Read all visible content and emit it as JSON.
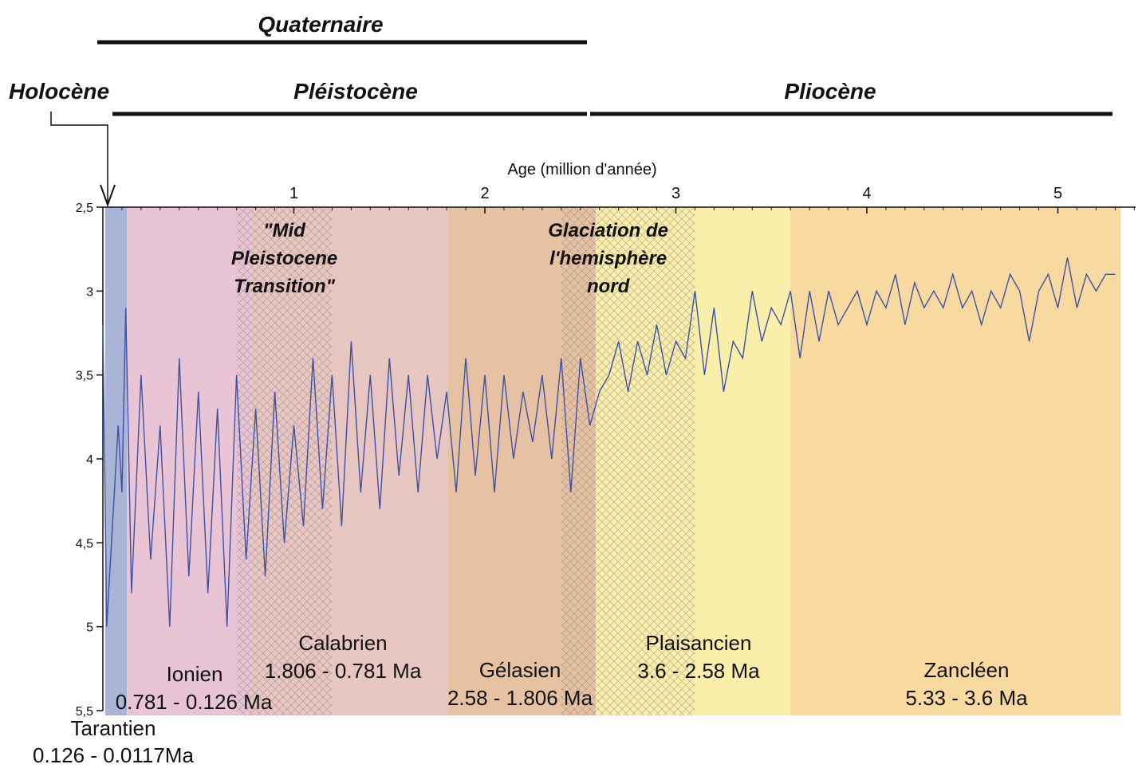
{
  "chart_data": {
    "type": "line",
    "title": "",
    "xlabel": "Age (million d'année)",
    "ylabel": "",
    "xlim": [
      0,
      5.33
    ],
    "ylim": [
      2.5,
      5.5
    ],
    "y_inverted": true,
    "x_ticks": [
      1,
      2,
      3,
      4,
      5
    ],
    "x_tick_labels": [
      "1",
      "2",
      "3",
      "4",
      "5"
    ],
    "y_ticks": [
      2.5,
      3,
      3.5,
      4,
      4.5,
      5,
      5.5
    ],
    "y_tick_labels": [
      "2,5",
      "3",
      "3,5",
      "4",
      "4,5",
      "5",
      "5,5"
    ],
    "grid": false,
    "series": [
      {
        "color": "#3f51a5",
        "x": [
          0,
          0.02,
          0.05,
          0.08,
          0.1,
          0.12,
          0.15,
          0.2,
          0.25,
          0.3,
          0.35,
          0.4,
          0.45,
          0.5,
          0.55,
          0.6,
          0.65,
          0.7,
          0.75,
          0.8,
          0.85,
          0.9,
          0.95,
          1.0,
          1.05,
          1.1,
          1.15,
          1.2,
          1.25,
          1.3,
          1.35,
          1.4,
          1.45,
          1.5,
          1.55,
          1.6,
          1.65,
          1.7,
          1.75,
          1.8,
          1.85,
          1.9,
          1.95,
          2.0,
          2.05,
          2.1,
          2.15,
          2.2,
          2.25,
          2.3,
          2.35,
          2.4,
          2.45,
          2.5,
          2.55,
          2.6,
          2.65,
          2.7,
          2.75,
          2.8,
          2.85,
          2.9,
          2.95,
          3.0,
          3.05,
          3.1,
          3.15,
          3.2,
          3.25,
          3.3,
          3.35,
          3.4,
          3.45,
          3.5,
          3.55,
          3.6,
          3.65,
          3.7,
          3.75,
          3.8,
          3.85,
          3.9,
          3.95,
          4.0,
          4.05,
          4.1,
          4.15,
          4.2,
          4.25,
          4.3,
          4.35,
          4.4,
          4.45,
          4.5,
          4.55,
          4.6,
          4.65,
          4.7,
          4.75,
          4.8,
          4.85,
          4.9,
          4.95,
          5.0,
          5.05,
          5.1,
          5.15,
          5.2,
          5.25,
          5.3
        ],
        "values": [
          3.2,
          5.0,
          4.4,
          3.8,
          4.2,
          3.1,
          4.8,
          3.5,
          4.6,
          3.8,
          5.0,
          3.4,
          4.7,
          3.6,
          4.8,
          3.7,
          5.0,
          3.5,
          4.6,
          3.7,
          4.7,
          3.6,
          4.5,
          3.8,
          4.4,
          3.4,
          4.3,
          3.5,
          4.4,
          3.3,
          4.2,
          3.5,
          4.3,
          3.4,
          4.1,
          3.5,
          4.2,
          3.5,
          4.0,
          3.6,
          4.2,
          3.4,
          4.1,
          3.5,
          4.2,
          3.5,
          4.0,
          3.6,
          3.9,
          3.5,
          4.0,
          3.4,
          4.2,
          3.4,
          3.8,
          3.6,
          3.5,
          3.3,
          3.6,
          3.3,
          3.5,
          3.2,
          3.5,
          3.3,
          3.4,
          3.0,
          3.5,
          3.1,
          3.6,
          3.3,
          3.4,
          3.0,
          3.3,
          3.1,
          3.2,
          3.0,
          3.4,
          3.0,
          3.3,
          3.0,
          3.2,
          3.1,
          3.0,
          3.2,
          3.0,
          3.1,
          2.9,
          3.2,
          2.95,
          3.1,
          3.0,
          3.1,
          2.9,
          3.1,
          3.0,
          3.2,
          3.0,
          3.1,
          2.9,
          3.0,
          3.3,
          3.0,
          2.9,
          3.1,
          2.8,
          3.1,
          2.9,
          3.0,
          2.9,
          2.9
        ]
      }
    ],
    "periods": {
      "quaternaire": "Quaternaire",
      "pleistocene": "Pléistocène",
      "pliocene": "Pliocène",
      "holocene": "Holocène"
    },
    "stages": [
      {
        "name": "Tarantien",
        "range": "0.126 - 0.0117Ma",
        "start": 0.0117,
        "end": 0.126,
        "color": "#a9b4d6"
      },
      {
        "name": "Ionien",
        "range": "0.781 - 0.126 Ma",
        "start": 0.126,
        "end": 0.781,
        "color": "#e9c4d4"
      },
      {
        "name": "Calabrien",
        "range": "1.806 - 0.781 Ma",
        "start": 0.781,
        "end": 1.806,
        "color": "#e8c6c2"
      },
      {
        "name": "Gélasien",
        "range": "2.58 - 1.806 Ma",
        "start": 1.806,
        "end": 2.58,
        "color": "#e6c2a2"
      },
      {
        "name": "Plaisancien",
        "range": "3.6 - 2.58 Ma",
        "start": 2.58,
        "end": 3.6,
        "color": "#f9eeaa"
      },
      {
        "name": "Zancléen",
        "range": "5.33 - 3.6 Ma",
        "start": 3.6,
        "end": 5.33,
        "color": "#f8d9a0"
      }
    ],
    "annotations": [
      {
        "text": [
          "\"Mid",
          "Pleistocene",
          "Transition\""
        ],
        "start": 0.7,
        "end": 1.2
      },
      {
        "text": [
          "Glaciation de",
          "l'hemisphère",
          "nord"
        ],
        "start": 2.4,
        "end": 3.1
      }
    ]
  }
}
